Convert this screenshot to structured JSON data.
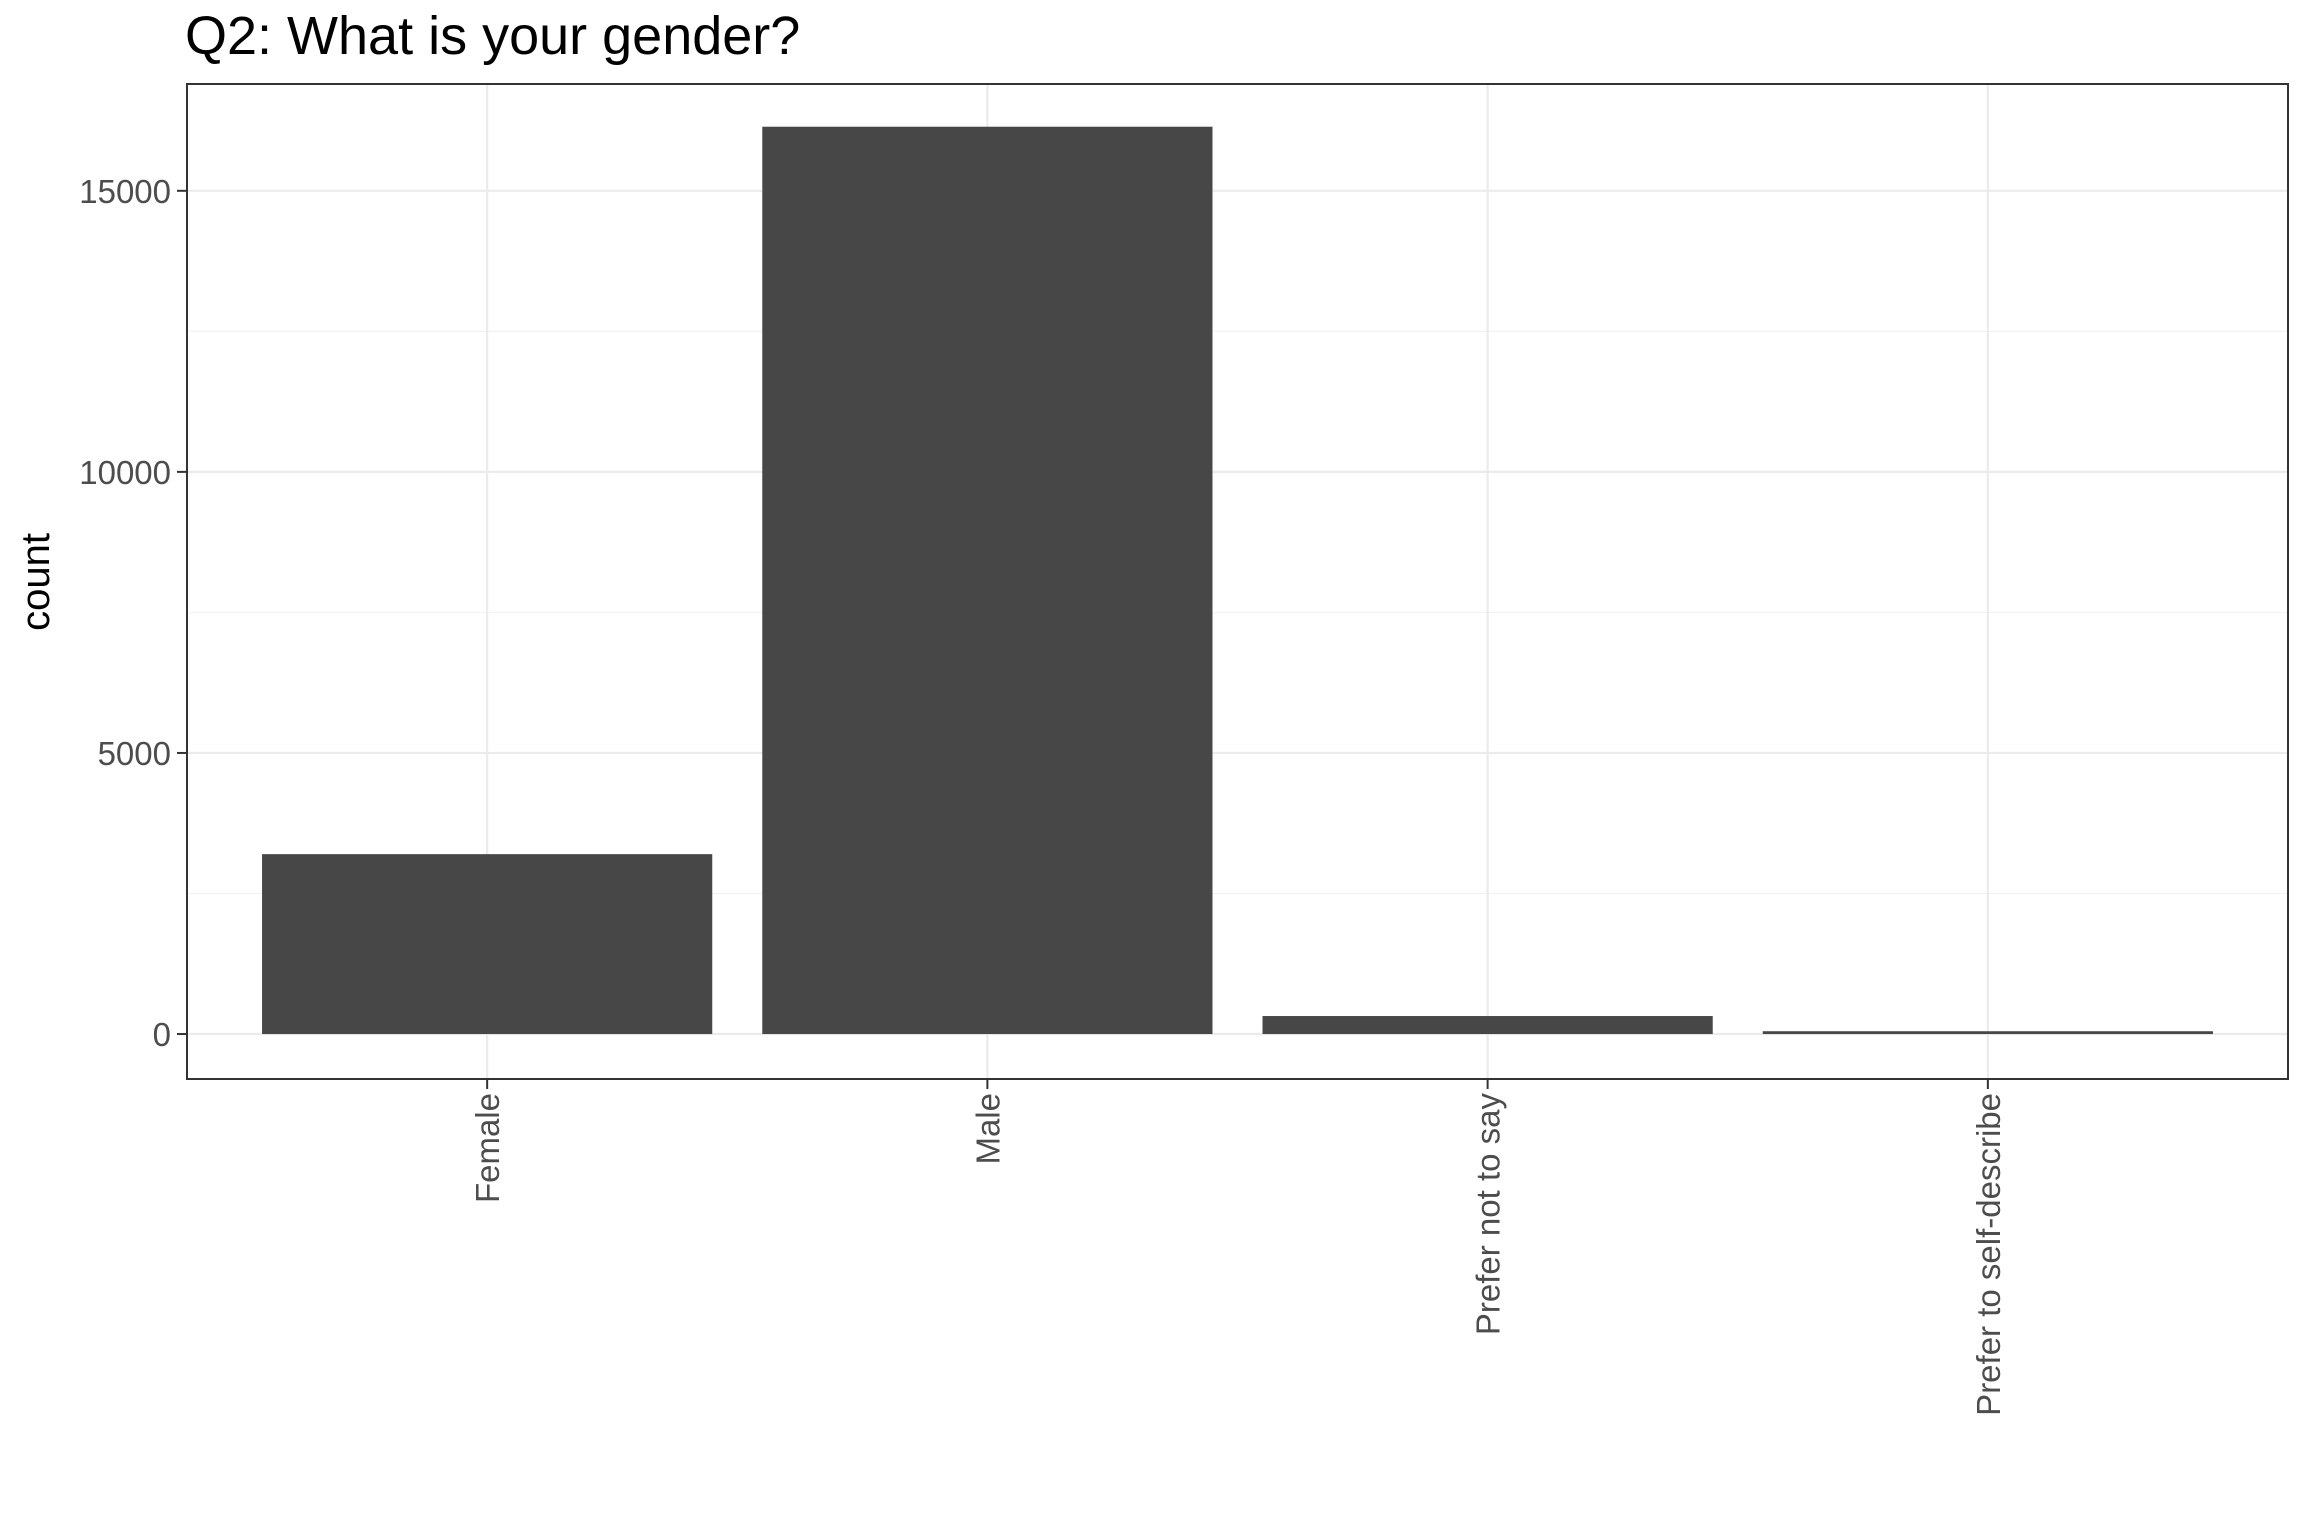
{
  "chart_data": {
    "type": "bar",
    "title": "Q2: What is your gender?",
    "xlabel": "",
    "ylabel": "count",
    "categories": [
      "Female",
      "Male",
      "Prefer not to say",
      "Prefer to self-describe"
    ],
    "values": [
      3200,
      16140,
      320,
      50
    ],
    "ylim": [
      -800,
      16900
    ],
    "yticks": [
      0,
      5000,
      10000,
      15000
    ],
    "ytick_labels": [
      "0",
      "5000",
      "10000",
      "15000"
    ],
    "grid": true,
    "legend": "none",
    "colors": {
      "bar": "#474747",
      "panel_border": "#333333",
      "grid": "#ebebeb",
      "tick_label": "#4d4d4d"
    }
  }
}
